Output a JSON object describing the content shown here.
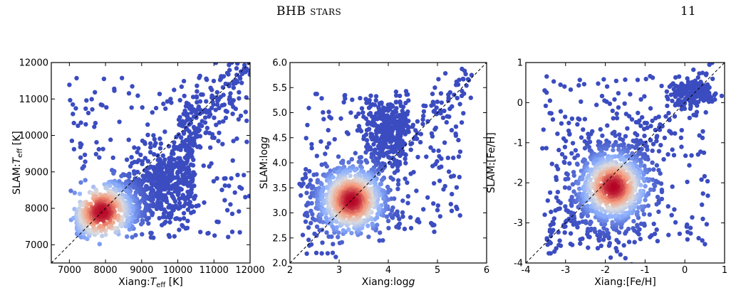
{
  "header": {
    "running_title_main": "BHB",
    "running_title_caps": "stars",
    "page_number": "11"
  },
  "chart_data": [
    {
      "type": "scatter",
      "xlabel": "Xiang:T_eff [K]",
      "ylabel": "SLAM:T_eff [K]",
      "x_ticks": [
        "7000",
        "8000",
        "9000",
        "10000",
        "11000",
        "12000"
      ],
      "y_ticks": [
        "7000",
        "8000",
        "9000",
        "10000",
        "11000",
        "12000"
      ],
      "xlim": [
        6500,
        12000
      ],
      "ylim": [
        6500,
        12000
      ],
      "one_to_one_line": true,
      "density_peak": [
        7900,
        7900
      ],
      "colormap": [
        "#3b4cc0",
        "#8db0fe",
        "#dddcdc",
        "#f49a7b",
        "#b40426"
      ],
      "grid": false
    },
    {
      "type": "scatter",
      "xlabel": "Xiang:logg",
      "ylabel": "SLAM:logg",
      "x_ticks": [
        "2",
        "3",
        "4",
        "5",
        "6"
      ],
      "y_ticks": [
        "2.0",
        "2.5",
        "3.0",
        "3.5",
        "4.0",
        "4.5",
        "5.0",
        "5.5",
        "6.0"
      ],
      "xlim": [
        2,
        6
      ],
      "ylim": [
        2.0,
        6.0
      ],
      "one_to_one_line": true,
      "density_peak": [
        3.25,
        3.25
      ],
      "colormap": [
        "#3b4cc0",
        "#8db0fe",
        "#dddcdc",
        "#f49a7b",
        "#b40426"
      ],
      "grid": false
    },
    {
      "type": "scatter",
      "xlabel": "Xiang:[Fe/H]",
      "ylabel": "SLAM:[Fe/H]",
      "x_ticks": [
        "-4",
        "-3",
        "-2",
        "-1",
        "0",
        "1"
      ],
      "y_ticks": [
        "-4",
        "-3",
        "-2",
        "-1",
        "0",
        "1"
      ],
      "xlim": [
        -4,
        1
      ],
      "ylim": [
        -4,
        1
      ],
      "one_to_one_line": true,
      "density_peak": [
        -1.8,
        -2.1
      ],
      "colormap": [
        "#3b4cc0",
        "#8db0fe",
        "#dddcdc",
        "#f49a7b",
        "#b40426"
      ],
      "grid": false
    }
  ]
}
